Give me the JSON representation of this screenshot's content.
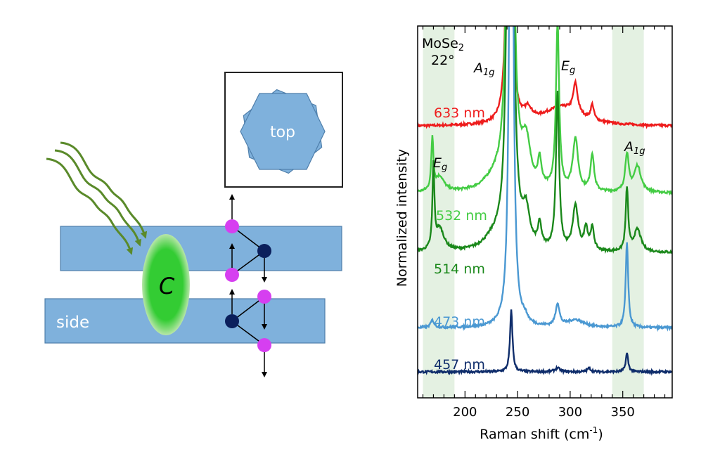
{
  "diagram": {
    "inset_label": "top",
    "side_label": "side",
    "center_label": "C",
    "colors": {
      "layer": "#7fb1dc",
      "layer_edge": "#4f7fab",
      "chalcogen_atom": "#d63ff0",
      "metal_atom": "#0b1f5c",
      "light_waves": "#5a8a2a",
      "center_glow": "#33cc33"
    }
  },
  "chart_data": {
    "type": "line",
    "title": "",
    "xlabel": "Raman shift (cm",
    "xlabel_sup": "-1",
    "xlabel_end": ")",
    "ylabel": "Normalized intensity",
    "xlim": [
      155,
      397
    ],
    "ylim": [
      0,
      100
    ],
    "xticks": [
      200,
      250,
      300,
      350
    ],
    "xtick_labels": [
      "200",
      "250",
      "300",
      "350"
    ],
    "minor_tick_step": 10,
    "grid": false,
    "shaded_ranges": [
      [
        160,
        190
      ],
      [
        340,
        370
      ]
    ],
    "shade_color": "#e4f1e2",
    "annotations": {
      "material": "MoSe",
      "material_sub": "2",
      "angle": "22°",
      "a1g_left": "A",
      "a1g_left_sub": "1g",
      "eg_top": "E",
      "eg_top_sub": "g",
      "eg_left": "E",
      "eg_left_sub": "g",
      "a1g_right": "A",
      "a1g_right_sub": "1g"
    },
    "series": [
      {
        "name": "633 nm",
        "color": "#ee1c1c",
        "baseline": 73,
        "peaks": [
          [
            242,
            200,
            1.6
          ],
          [
            260,
            3,
            4
          ],
          [
            292,
            5,
            22
          ],
          [
            305,
            8,
            2.5
          ],
          [
            321,
            4,
            1.8
          ]
        ]
      },
      {
        "name": "532 nm",
        "color": "#44cc44",
        "baseline": 55,
        "peaks": [
          [
            169,
            14,
            1.2
          ],
          [
            176,
            4,
            5
          ],
          [
            243,
            300,
            2
          ],
          [
            258,
            12,
            5
          ],
          [
            271,
            7,
            2
          ],
          [
            288,
            45,
            1.8
          ],
          [
            305,
            14,
            3
          ],
          [
            321,
            10,
            2
          ],
          [
            354,
            10,
            2
          ],
          [
            364,
            7,
            4
          ],
          [
            228,
            3,
            12
          ]
        ]
      },
      {
        "name": "514 nm",
        "color": "#1a881a",
        "baseline": 39,
        "peaks": [
          [
            170,
            22,
            1.1
          ],
          [
            176,
            6,
            5
          ],
          [
            243,
            300,
            2
          ],
          [
            258,
            9,
            4
          ],
          [
            271,
            6,
            2
          ],
          [
            288,
            42,
            1.8
          ],
          [
            305,
            12,
            3
          ],
          [
            315,
            6,
            2
          ],
          [
            321,
            6,
            2
          ],
          [
            354,
            17,
            1.4
          ],
          [
            364,
            6,
            4
          ],
          [
            228,
            3,
            12
          ]
        ]
      },
      {
        "name": "473 nm",
        "color": "#4a98d2",
        "baseline": 18.8,
        "peaks": [
          [
            169,
            2,
            2
          ],
          [
            244,
            200,
            1.8
          ],
          [
            257,
            1.5,
            3
          ],
          [
            288,
            6,
            2.2
          ],
          [
            305,
            2,
            10
          ],
          [
            354,
            23,
            1.4
          ]
        ]
      },
      {
        "name": "457 nm",
        "color": "#0f2d6b",
        "baseline": 7,
        "peaks": [
          [
            244,
            16.5,
            1.4
          ],
          [
            288,
            1,
            3
          ],
          [
            318,
            1,
            2
          ],
          [
            354,
            5,
            1.4
          ]
        ]
      }
    ]
  }
}
